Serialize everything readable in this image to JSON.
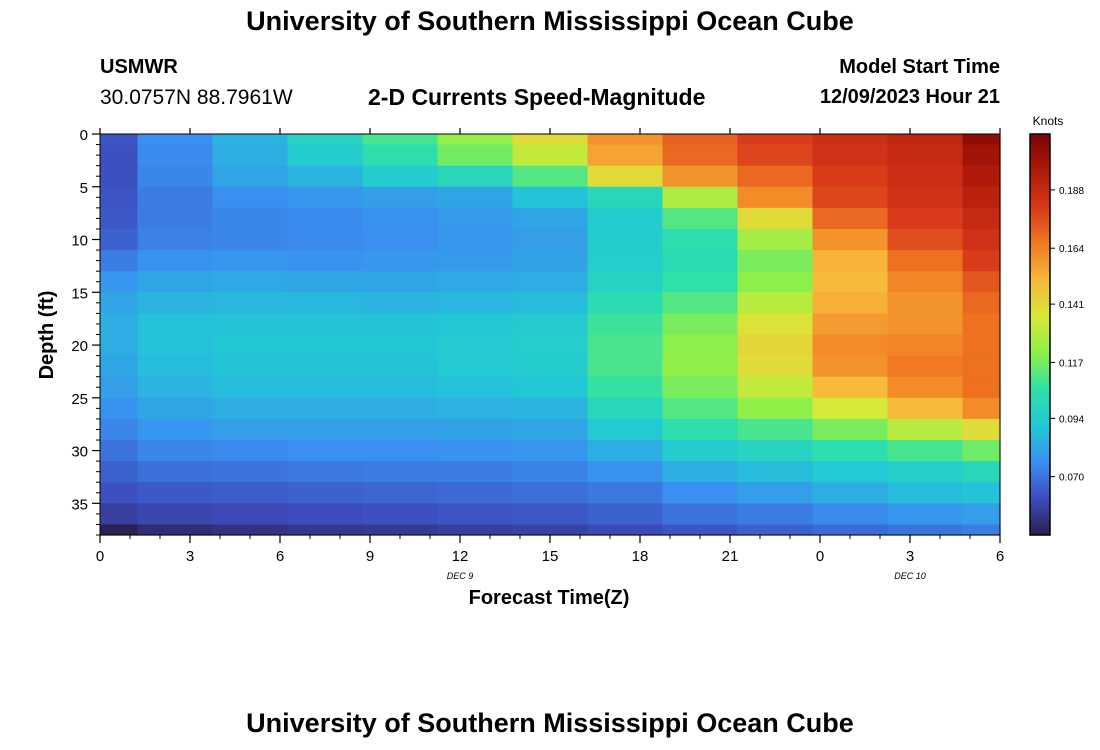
{
  "header": {
    "title": "University of Southern Mississippi Ocean Cube",
    "station": "USMWR",
    "coordinates": "30.0757N  88.7961W",
    "plot_title": "2-D Currents Speed-Magnitude",
    "model_start_label": "Model Start Time",
    "model_start_value": "12/09/2023 Hour 21"
  },
  "footer": {
    "title": "University of Southern Mississippi Ocean Cube"
  },
  "chart_data": {
    "type": "heatmap",
    "title": "2-D Currents Speed-Magnitude",
    "xlabel": "Forecast Time(Z)",
    "ylabel": "Depth (ft)",
    "x_tick_labels": [
      "0",
      "3",
      "6",
      "9",
      "12",
      "15",
      "18",
      "21",
      "0",
      "3",
      "6"
    ],
    "x_date_labels": [
      {
        "label": "DEC 9",
        "at_tick": 4
      },
      {
        "label": "DEC 10",
        "at_tick": 9
      }
    ],
    "xlim_hours": [
      0,
      30
    ],
    "ylim": [
      38,
      0
    ],
    "y_ticks": [
      0,
      5,
      10,
      15,
      20,
      25,
      30,
      35
    ],
    "y_tick_labels": [
      "0",
      "5",
      "10",
      "15",
      "20",
      "25",
      "30",
      "35"
    ],
    "colorbar": {
      "title": "Knots",
      "range": [
        0.046,
        0.211
      ],
      "ticks": [
        0.07,
        0.094,
        0.117,
        0.141,
        0.164,
        0.188
      ],
      "tick_labels": [
        "0.070",
        "0.094",
        "0.117",
        "0.141",
        "0.164",
        "0.188"
      ],
      "colors": [
        "#2b1e4e",
        "#3d4cbd",
        "#3a8ff0",
        "#22c7d6",
        "#2fe0a8",
        "#8cf04a",
        "#d6e838",
        "#f8b83a",
        "#f07a22",
        "#d8381a",
        "#b01a0a",
        "#7a0403"
      ]
    },
    "time_hours": [
      0,
      2.5,
      5,
      7.5,
      10,
      12.5,
      15,
      17.5,
      20,
      22.5,
      25,
      27.5,
      30
    ],
    "depth_levels_ft": [
      0,
      2,
      4,
      6,
      8,
      10,
      12,
      14,
      16,
      18,
      20,
      22,
      24,
      26,
      28,
      30,
      32,
      34,
      36,
      38
    ],
    "speed_knots": [
      [
        0.063,
        0.076,
        0.086,
        0.098,
        0.11,
        0.123,
        0.14,
        0.16,
        0.172,
        0.18,
        0.186,
        0.19,
        0.205
      ],
      [
        0.062,
        0.075,
        0.084,
        0.094,
        0.104,
        0.117,
        0.132,
        0.156,
        0.17,
        0.178,
        0.184,
        0.188,
        0.2
      ],
      [
        0.062,
        0.074,
        0.082,
        0.086,
        0.094,
        0.1,
        0.112,
        0.14,
        0.16,
        0.17,
        0.18,
        0.186,
        0.196
      ],
      [
        0.063,
        0.072,
        0.076,
        0.078,
        0.08,
        0.082,
        0.09,
        0.1,
        0.128,
        0.162,
        0.178,
        0.184,
        0.192
      ],
      [
        0.064,
        0.072,
        0.074,
        0.075,
        0.077,
        0.079,
        0.082,
        0.094,
        0.112,
        0.14,
        0.17,
        0.18,
        0.188
      ],
      [
        0.066,
        0.073,
        0.074,
        0.075,
        0.076,
        0.078,
        0.08,
        0.094,
        0.104,
        0.126,
        0.16,
        0.176,
        0.184
      ],
      [
        0.072,
        0.077,
        0.078,
        0.077,
        0.078,
        0.079,
        0.081,
        0.095,
        0.103,
        0.118,
        0.152,
        0.168,
        0.18
      ],
      [
        0.078,
        0.082,
        0.083,
        0.082,
        0.082,
        0.083,
        0.084,
        0.097,
        0.106,
        0.121,
        0.15,
        0.163,
        0.174
      ],
      [
        0.082,
        0.086,
        0.087,
        0.087,
        0.086,
        0.087,
        0.088,
        0.103,
        0.112,
        0.13,
        0.153,
        0.16,
        0.17
      ],
      [
        0.084,
        0.089,
        0.09,
        0.09,
        0.09,
        0.091,
        0.093,
        0.108,
        0.118,
        0.138,
        0.158,
        0.16,
        0.168
      ],
      [
        0.084,
        0.089,
        0.091,
        0.091,
        0.091,
        0.093,
        0.095,
        0.11,
        0.121,
        0.142,
        0.162,
        0.163,
        0.168
      ],
      [
        0.082,
        0.088,
        0.09,
        0.09,
        0.09,
        0.092,
        0.094,
        0.11,
        0.122,
        0.14,
        0.16,
        0.166,
        0.168
      ],
      [
        0.08,
        0.086,
        0.088,
        0.088,
        0.088,
        0.089,
        0.091,
        0.107,
        0.118,
        0.132,
        0.15,
        0.162,
        0.168
      ],
      [
        0.077,
        0.082,
        0.084,
        0.084,
        0.084,
        0.085,
        0.086,
        0.1,
        0.112,
        0.122,
        0.136,
        0.15,
        0.162
      ],
      [
        0.074,
        0.078,
        0.08,
        0.08,
        0.08,
        0.081,
        0.082,
        0.092,
        0.104,
        0.11,
        0.118,
        0.13,
        0.14
      ],
      [
        0.07,
        0.074,
        0.075,
        0.076,
        0.076,
        0.077,
        0.078,
        0.084,
        0.094,
        0.098,
        0.104,
        0.11,
        0.116
      ],
      [
        0.066,
        0.069,
        0.07,
        0.071,
        0.072,
        0.072,
        0.073,
        0.077,
        0.084,
        0.088,
        0.092,
        0.096,
        0.1
      ],
      [
        0.062,
        0.064,
        0.065,
        0.066,
        0.067,
        0.068,
        0.069,
        0.071,
        0.076,
        0.08,
        0.084,
        0.088,
        0.09
      ],
      [
        0.057,
        0.059,
        0.06,
        0.061,
        0.062,
        0.063,
        0.064,
        0.066,
        0.07,
        0.072,
        0.075,
        0.078,
        0.08
      ],
      [
        0.047,
        0.051,
        0.053,
        0.054,
        0.055,
        0.057,
        0.058,
        0.06,
        0.063,
        0.066,
        0.068,
        0.07,
        0.072
      ]
    ]
  }
}
